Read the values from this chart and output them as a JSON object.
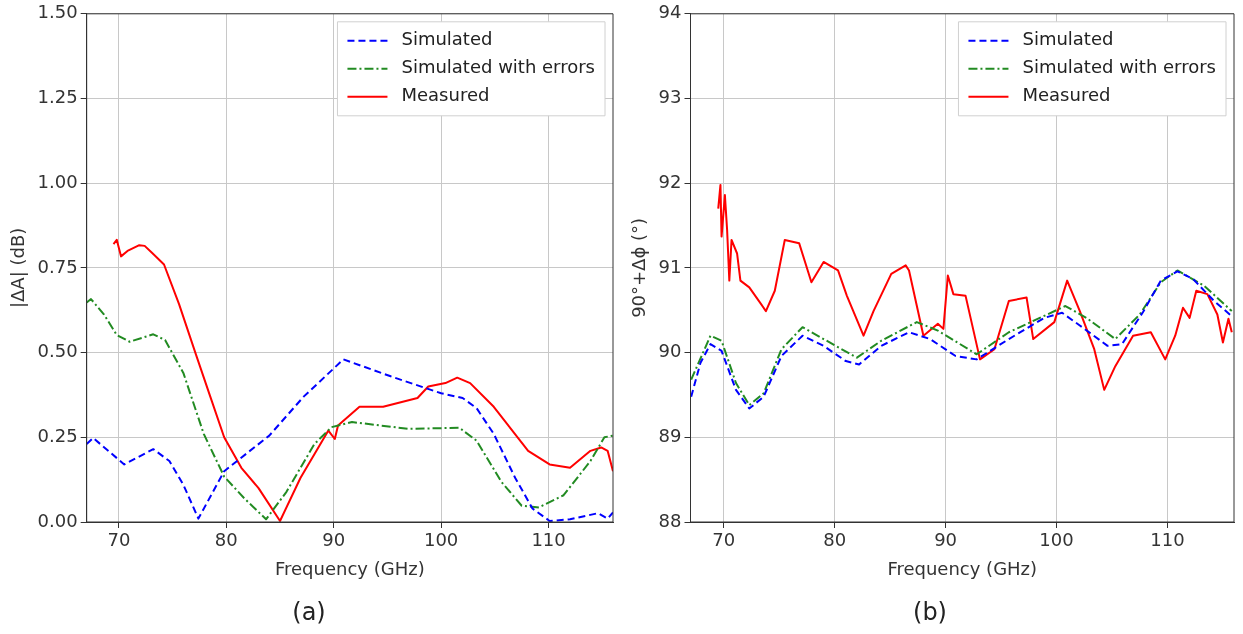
{
  "chart_data": [
    {
      "type": "line",
      "title": "(a)",
      "xlabel": "Frequency (GHz)",
      "ylabel": "|ΔA| (dB)",
      "xlim": [
        67,
        116
      ],
      "xticks": [
        70,
        80,
        90,
        100,
        110
      ],
      "ylim": [
        0,
        1.5
      ],
      "yticks": [
        {
          "value": 0,
          "label": "0.00"
        },
        {
          "value": 0.25,
          "label": "0.25"
        },
        {
          "value": 0.5,
          "label": "0.50"
        },
        {
          "value": 0.75,
          "label": "0.75"
        },
        {
          "value": 1,
          "label": "1.00"
        },
        {
          "value": 1.25,
          "label": "1.25"
        },
        {
          "value": 1.5,
          "label": "1.50"
        }
      ],
      "grid": true,
      "legend": "top right",
      "marker": "none",
      "series": [
        {
          "name": "Simulated",
          "color": "#0000ff",
          "line_style": "dashed",
          "x": [
            67,
            67.6,
            70.5,
            73.2,
            74.7,
            76,
            77.4,
            79.8,
            84,
            87.2,
            90.9,
            95.3,
            100,
            102,
            103.3,
            104.9,
            106.9,
            108.5,
            110.1,
            112,
            114.6,
            115.5,
            116
          ],
          "values": [
            0.23,
            0.248,
            0.17,
            0.215,
            0.18,
            0.11,
            0.01,
            0.15,
            0.255,
            0.37,
            0.48,
            0.43,
            0.38,
            0.366,
            0.336,
            0.26,
            0.13,
            0.04,
            0.003,
            0.008,
            0.026,
            0.01,
            0.028
          ]
        },
        {
          "name": "Simulated with errors",
          "color": "#228b22",
          "line_style": "dashdot",
          "x": [
            67,
            67.4,
            68.6,
            69.8,
            71,
            73.2,
            74.3,
            76,
            77.9,
            79.8,
            81.7,
            83.7,
            85.6,
            88.2,
            89.8,
            91.7,
            96.9,
            101.7,
            103.3,
            105.6,
            107.5,
            109.1,
            111.4,
            113.9,
            115.2,
            116
          ],
          "values": [
            0.648,
            0.658,
            0.613,
            0.552,
            0.532,
            0.554,
            0.537,
            0.44,
            0.26,
            0.134,
            0.069,
            0.008,
            0.089,
            0.23,
            0.28,
            0.295,
            0.275,
            0.278,
            0.24,
            0.119,
            0.048,
            0.043,
            0.079,
            0.18,
            0.25,
            0.255
          ]
        },
        {
          "name": "Measured",
          "color": "#ff0000",
          "line_style": "solid",
          "x": [
            69.5,
            69.8,
            70.2,
            70.8,
            71.9,
            72.4,
            73.1,
            74.2,
            75.6,
            77.2,
            78.5,
            79.8,
            81.4,
            83,
            85,
            86.9,
            89.5,
            90.1,
            90.4,
            92.4,
            94.6,
            97.8,
            98.8,
            100.4,
            101.5,
            102.7,
            104.9,
            108.1,
            110.1,
            112,
            113.9,
            114.9,
            115.5,
            116
          ],
          "values": [
            0.82,
            0.833,
            0.784,
            0.8,
            0.817,
            0.815,
            0.794,
            0.76,
            0.643,
            0.492,
            0.371,
            0.25,
            0.16,
            0.1,
            0.003,
            0.13,
            0.27,
            0.245,
            0.285,
            0.34,
            0.34,
            0.366,
            0.4,
            0.41,
            0.426,
            0.41,
            0.34,
            0.21,
            0.17,
            0.16,
            0.21,
            0.22,
            0.21,
            0.15
          ]
        }
      ]
    },
    {
      "type": "line",
      "title": "(b)",
      "xlabel": "Frequency (GHz)",
      "ylabel": "90°+Δϕ (°)",
      "xlim": [
        67,
        116
      ],
      "xticks": [
        70,
        80,
        90,
        100,
        110
      ],
      "ylim": [
        88,
        94
      ],
      "yticks": [
        88,
        89,
        90,
        91,
        92,
        93,
        94
      ],
      "grid": true,
      "legend": "top right",
      "marker": "none",
      "series": [
        {
          "name": "Simulated",
          "color": "#0000ff",
          "line_style": "dashed",
          "x": [
            67.06,
            67.9,
            68.8,
            69.8,
            71.1,
            72.3,
            73.6,
            75.2,
            77.1,
            79,
            81,
            82.2,
            84.2,
            86.7,
            88.6,
            90.9,
            92.8,
            95.7,
            98.9,
            100.5,
            102.1,
            104.6,
            105.9,
            107.8,
            109.4,
            110.9,
            112.3,
            114.2,
            115.8
          ],
          "values": [
            89.48,
            89.88,
            90.1,
            90.02,
            89.56,
            89.34,
            89.48,
            89.96,
            90.2,
            90.08,
            89.9,
            89.86,
            90.08,
            90.24,
            90.16,
            89.96,
            89.92,
            90.16,
            90.41,
            90.47,
            90.32,
            90.08,
            90.1,
            90.48,
            90.85,
            90.96,
            90.87,
            90.61,
            90.43
          ]
        },
        {
          "name": "Simulated with errors",
          "color": "#228b22",
          "line_style": "dashdot",
          "x": [
            67.06,
            68.8,
            69.8,
            71.1,
            72.3,
            73.6,
            75.2,
            77.1,
            79,
            82,
            84.2,
            87.4,
            89.3,
            92.8,
            95.7,
            100.8,
            102.7,
            105.3,
            107.5,
            109.4,
            110.9,
            113.3,
            115.8
          ],
          "values": [
            89.68,
            90.2,
            90.14,
            89.64,
            89.38,
            89.52,
            90.04,
            90.3,
            90.16,
            89.94,
            90.14,
            90.36,
            90.26,
            89.98,
            90.24,
            90.55,
            90.41,
            90.16,
            90.45,
            90.83,
            90.97,
            90.79,
            90.49
          ]
        },
        {
          "name": "Measured",
          "color": "#ff0000",
          "line_style": "solid",
          "x": [
            69.5,
            69.7,
            69.8,
            70.1,
            70.3,
            70.5,
            70.7,
            71.2,
            71.5,
            72.3,
            73.8,
            74.6,
            75.5,
            76.8,
            77.9,
            79,
            80.3,
            81.1,
            82.6,
            83.5,
            85.1,
            86.4,
            86.7,
            88,
            89.3,
            89.8,
            90.2,
            90.7,
            91.8,
            93.1,
            94.4,
            95.7,
            97.3,
            97.9,
            99.8,
            100.96,
            102.1,
            103.4,
            104.3,
            105.3,
            106.9,
            108.5,
            109.8,
            110.7,
            111.4,
            112,
            112.6,
            113.6,
            114.5,
            115,
            115.5,
            115.8
          ],
          "values": [
            91.7,
            91.98,
            91.37,
            91.86,
            91.45,
            90.85,
            91.33,
            91.17,
            90.85,
            90.77,
            90.49,
            90.73,
            91.33,
            91.29,
            90.83,
            91.07,
            90.97,
            90.67,
            90.2,
            90.49,
            90.93,
            91.03,
            90.97,
            90.2,
            90.34,
            90.28,
            90.91,
            90.69,
            90.67,
            89.92,
            90.04,
            90.61,
            90.65,
            90.16,
            90.36,
            90.85,
            90.49,
            90.04,
            89.56,
            89.84,
            90.2,
            90.24,
            89.92,
            90.2,
            90.53,
            90.41,
            90.73,
            90.69,
            90.45,
            90.12,
            90.4,
            90.24
          ]
        }
      ]
    }
  ]
}
